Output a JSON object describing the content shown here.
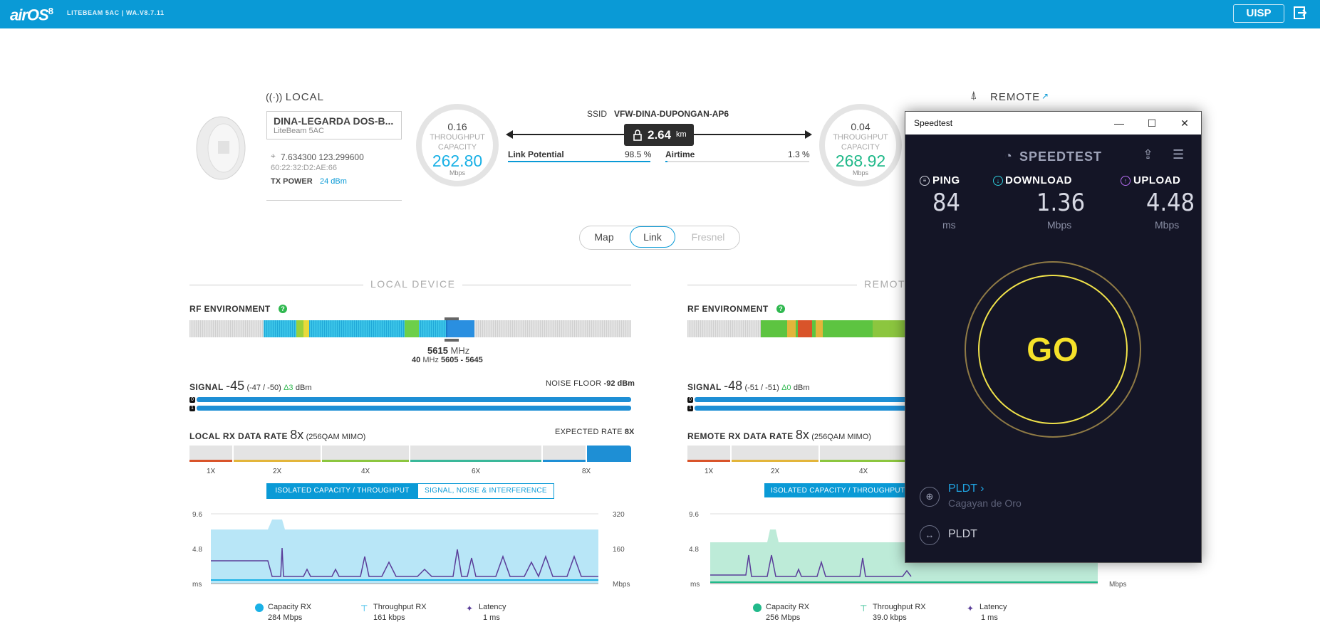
{
  "topbar": {
    "logo": "airOS",
    "logo_version": "8",
    "device_fw": "LITEBEAM 5AC | WA.V8.7.11",
    "uisp_label": "UISP",
    "color": "#0a9ad6"
  },
  "local": {
    "title": "LOCAL",
    "name": "DINA-LEGARDA DOS-B...",
    "model": "LiteBeam 5AC",
    "coords": "7.634300  123.299600",
    "mac": "60:22:32:D2:AE:66",
    "txpower_label": "TX POWER",
    "txpower_value": "24 dBm",
    "gauge": {
      "top": "0.16",
      "label1": "THROUGHPUT",
      "label2": "CAPACITY",
      "value": "262.80",
      "unit": "Mbps",
      "color": "#1ab1e6"
    }
  },
  "link": {
    "ssid_label": "SSID",
    "ssid_value": "VFW-DINA-DUPONGAN-AP6",
    "distance": "2.64",
    "distance_unit": "km",
    "link_potential_label": "Link Potential",
    "link_potential_value": "98.5 %",
    "link_potential_fraction": 0.985,
    "airtime_label": "Airtime",
    "airtime_value": "1.3 %",
    "airtime_fraction": 0.013
  },
  "remote": {
    "title": "REMOTE",
    "gauge": {
      "top": "0.04",
      "label1": "THROUGHPUT",
      "label2": "CAPACITY",
      "value": "268.92",
      "unit": "Mbps",
      "color": "#21b98a"
    }
  },
  "view_tabs": {
    "map": "Map",
    "link": "Link",
    "fresnel": "Fresnel"
  },
  "local_device": {
    "section_title": "LOCAL DEVICE",
    "rf_label": "RF ENVIRONMENT",
    "help": "?",
    "freq": "5615",
    "freq_unit": "MHz",
    "channel_width": "40",
    "channel_width_unit": "MHz",
    "channel_range": "5605 - 5645",
    "signal_label": "SIGNAL",
    "signal_value": "-45",
    "signal_chains": "(-47 / -50)",
    "signal_delta": "Δ3",
    "signal_unit": "dBm",
    "noise_label": "NOISE FLOOR",
    "noise_value": "-92 dBm",
    "rate_label": "LOCAL RX DATA RATE",
    "rate_value": "8x",
    "rate_mod": "(256QAM MIMO)",
    "expected_label": "EXPECTED RATE",
    "expected_value": "8X",
    "ticks": [
      "1X",
      "2X",
      "4X",
      "6X",
      "8X"
    ],
    "btn_capacity": "ISOLATED CAPACITY / THROUGHPUT",
    "btn_signal": "SIGNAL, NOISE & INTERFERENCE",
    "y_left": [
      "9.6",
      "4.8",
      "ms"
    ],
    "y_right": [
      "320",
      "160",
      "Mbps"
    ],
    "legend": [
      {
        "label": "Capacity RX",
        "value": "284 Mbps",
        "color": "#1ab1e6"
      },
      {
        "label": "Throughput RX",
        "value": "161 kbps",
        "color": "#1ab1e6"
      },
      {
        "label": "Latency",
        "value": "1 ms",
        "color": "#5a3d99"
      }
    ]
  },
  "remote_device": {
    "section_title": "REMOTE",
    "rf_label": "RF ENVIRONMENT",
    "help": "?",
    "signal_label": "SIGNAL",
    "signal_value": "-48",
    "signal_chains": "(-51 / -51)",
    "signal_delta": "Δ0",
    "signal_unit": "dBm",
    "rate_label": "REMOTE RX DATA RATE",
    "rate_value": "8x",
    "rate_mod": "(256QAM MIMO)",
    "ticks": [
      "1X",
      "2X",
      "4X"
    ],
    "btn_capacity": "ISOLATED CAPACITY / THROUGHPUT",
    "y_left": [
      "9.6",
      "4.8",
      "ms"
    ],
    "y_right": [
      "Mbps"
    ],
    "legend": [
      {
        "label": "Capacity RX",
        "value": "256 Mbps",
        "color": "#21b98a"
      },
      {
        "label": "Throughput RX",
        "value": "39.0 kbps",
        "color": "#21b98a"
      },
      {
        "label": "Latency",
        "value": "1 ms",
        "color": "#5a3d99"
      }
    ]
  },
  "speedtest": {
    "window_title": "Speedtest",
    "brand": "SPEEDTEST",
    "ping_label": "PING",
    "ping_value": "84",
    "ping_unit": "ms",
    "download_label": "DOWNLOAD",
    "download_value": "1.36",
    "download_unit": "Mbps",
    "upload_label": "UPLOAD",
    "upload_value": "4.48",
    "upload_unit": "Mbps",
    "go": "GO",
    "isp": "PLDT",
    "isp_location": "Cagayan de Oro",
    "server": "PLDT"
  }
}
